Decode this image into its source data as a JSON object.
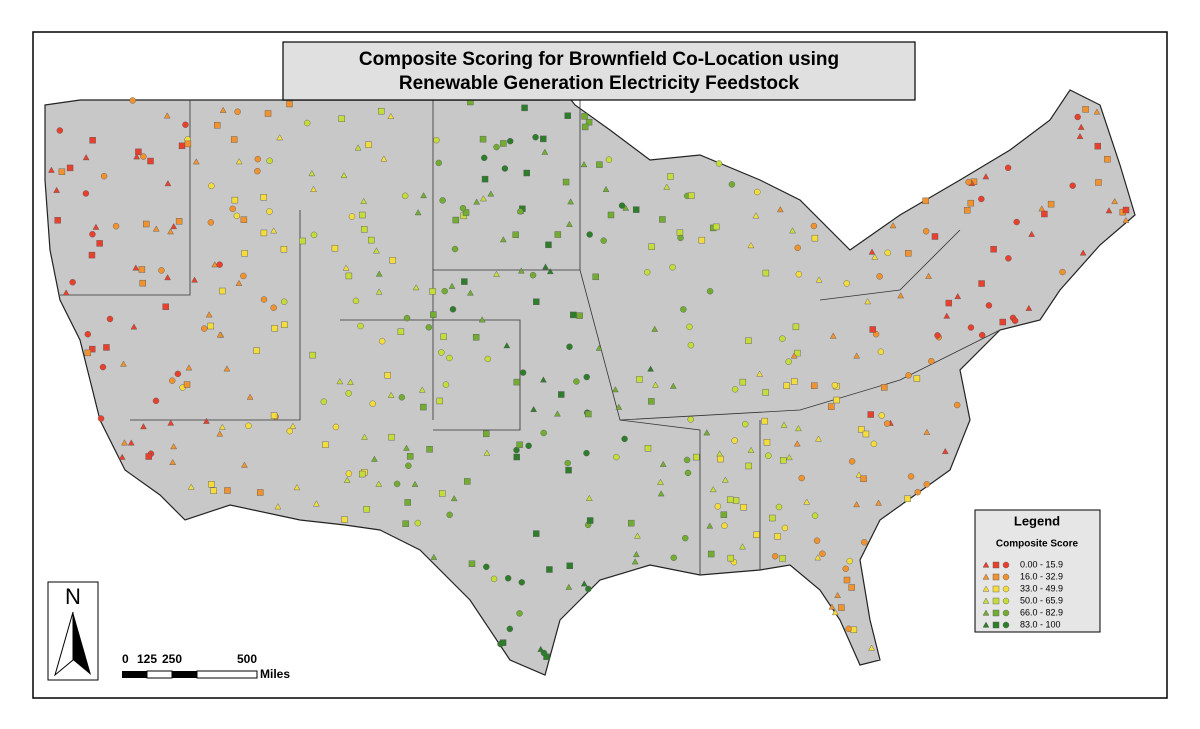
{
  "title": {
    "line1": "Composite Scoring for Brownfield Co-Location using",
    "line2": "Renewable Generation Electricity Feedstock"
  },
  "legend": {
    "title": "Legend",
    "subtitle": "Composite Score",
    "items": [
      {
        "label": "0.00 - 15.9",
        "color": "#e8402c"
      },
      {
        "label": "16.0 - 32.9",
        "color": "#f0922e"
      },
      {
        "label": "33.0 - 49.9",
        "color": "#f3dc3c"
      },
      {
        "label": "50.0 - 65.9",
        "color": "#c6dc3a"
      },
      {
        "label": "66.0 - 82.9",
        "color": "#72ad32"
      },
      {
        "label": "83.0 - 100",
        "color": "#2e7d2a"
      }
    ]
  },
  "scale_bar": {
    "labels": [
      "0",
      "125",
      "250",
      "500"
    ],
    "unit": "Miles"
  },
  "north_arrow": {
    "label": "N"
  }
}
